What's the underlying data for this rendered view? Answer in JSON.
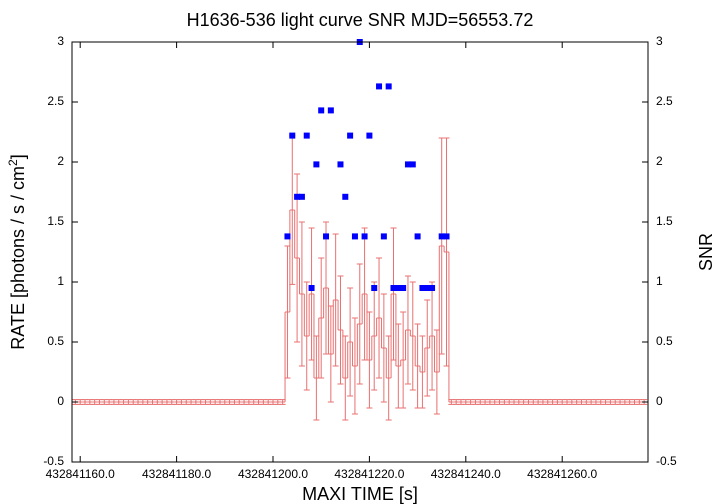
{
  "chart_data": {
    "type": "light-curve",
    "title": "H1636-536 light curve  SNR MJD=56553.72",
    "xlabel": "MAXI TIME [s]",
    "ylabel": "RATE [photons / s / cm",
    "ylabel_sup": "2",
    "ylabel_end": "]",
    "y2label": "SNR",
    "xlim": [
      432841158.3,
      432841277.8
    ],
    "ylim": [
      -0.5,
      3
    ],
    "y2lim": [
      -0.5,
      3
    ],
    "xticks": [
      {
        "value": 432841160,
        "label": "432841160.0"
      },
      {
        "value": 432841180,
        "label": "432841180.0"
      },
      {
        "value": 432841200,
        "label": "432841200.0"
      },
      {
        "value": 432841220,
        "label": "432841220.0"
      },
      {
        "value": 432841240,
        "label": "432841240.0"
      },
      {
        "value": 432841260,
        "label": "432841260.0"
      }
    ],
    "yticks": [
      -0.5,
      0,
      0.5,
      1,
      1.5,
      2,
      2.5,
      3
    ],
    "y2ticks": [
      -0.5,
      0,
      0.5,
      1,
      1.5,
      2,
      2.5,
      3
    ],
    "series": [
      {
        "style": "histeps",
        "color": "#e87070",
        "x": [
          432841159,
          432841160,
          432841161,
          432841162,
          432841163,
          432841164,
          432841165,
          432841166,
          432841167,
          432841168,
          432841169,
          432841170,
          432841171,
          432841172,
          432841173,
          432841174,
          432841175,
          432841176,
          432841177,
          432841178,
          432841179,
          432841180,
          432841181,
          432841182,
          432841183,
          432841184,
          432841185,
          432841186,
          432841187,
          432841188,
          432841189,
          432841190,
          432841191,
          432841192,
          432841193,
          432841194,
          432841195,
          432841196,
          432841197,
          432841198,
          432841199,
          432841200,
          432841201,
          432841202,
          432841203,
          432841204,
          432841205,
          432841206,
          432841207,
          432841208,
          432841209,
          432841210,
          432841211,
          432841212,
          432841213,
          432841214,
          432841215,
          432841216,
          432841217,
          432841218,
          432841219,
          432841220,
          432841221,
          432841222,
          432841223,
          432841224,
          432841225,
          432841226,
          432841227,
          432841228,
          432841229,
          432841230,
          432841231,
          432841232,
          432841233,
          432841234,
          432841235,
          432841236,
          432841237,
          432841238,
          432841239,
          432841240,
          432841241,
          432841242,
          432841243,
          432841244,
          432841245,
          432841246,
          432841247,
          432841248,
          432841249,
          432841250,
          432841251,
          432841252,
          432841253,
          432841254,
          432841255,
          432841256,
          432841257,
          432841258,
          432841259,
          432841260,
          432841261,
          432841262,
          432841263,
          432841264,
          432841265,
          432841266,
          432841267,
          432841268,
          432841269,
          432841270,
          432841271,
          432841272,
          432841273,
          432841274,
          432841275,
          432841276,
          432841277
        ],
        "values": [
          0,
          0,
          0,
          0,
          0,
          0,
          0,
          0,
          0,
          0,
          0,
          0,
          0,
          0,
          0,
          0,
          0,
          0,
          0,
          0,
          0,
          0,
          0,
          0,
          0,
          0,
          0,
          0,
          0,
          0,
          0,
          0,
          0,
          0,
          0,
          0,
          0,
          0,
          0,
          0,
          0,
          0,
          0,
          0,
          0.75,
          1.6,
          1.2,
          0.9,
          0.55,
          0.9,
          0.2,
          0.7,
          0.95,
          0.4,
          0.85,
          0.6,
          0.2,
          0.5,
          0.3,
          0.65,
          0.9,
          0.35,
          0.55,
          0.7,
          0.45,
          0.2,
          0.9,
          0.3,
          0.35,
          0.6,
          0.55,
          0.3,
          0.25,
          0.45,
          0.55,
          0.25,
          1.3,
          1.25,
          0,
          0,
          0,
          0,
          0,
          0,
          0,
          0,
          0,
          0,
          0,
          0,
          0,
          0,
          0,
          0,
          0,
          0,
          0,
          0,
          0,
          0,
          0,
          0,
          0,
          0,
          0,
          0,
          0,
          0,
          0,
          0,
          0,
          0,
          0,
          0,
          0,
          0,
          0,
          0,
          0
        ],
        "errors": [
          0.02,
          0.02,
          0.02,
          0.02,
          0.02,
          0.02,
          0.02,
          0.02,
          0.02,
          0.02,
          0.02,
          0.02,
          0.02,
          0.02,
          0.02,
          0.02,
          0.02,
          0.02,
          0.02,
          0.02,
          0.02,
          0.02,
          0.02,
          0.02,
          0.02,
          0.02,
          0.02,
          0.02,
          0.02,
          0.02,
          0.02,
          0.02,
          0.02,
          0.02,
          0.02,
          0.02,
          0.02,
          0.02,
          0.02,
          0.02,
          0.02,
          0.02,
          0.02,
          0.02,
          0.55,
          0.62,
          0.7,
          0.6,
          0.45,
          0.55,
          0.35,
          0.5,
          0.55,
          0.4,
          0.55,
          0.45,
          0.35,
          0.45,
          0.4,
          0.5,
          0.55,
          0.4,
          0.45,
          0.5,
          0.45,
          0.35,
          0.55,
          0.35,
          0.4,
          0.45,
          0.45,
          0.35,
          0.3,
          0.4,
          0.45,
          0.35,
          0.9,
          0.95,
          0.02,
          0.02,
          0.02,
          0.02,
          0.02,
          0.02,
          0.02,
          0.02,
          0.02,
          0.02,
          0.02,
          0.02,
          0.02,
          0.02,
          0.02,
          0.02,
          0.02,
          0.02,
          0.02,
          0.02,
          0.02,
          0.02,
          0.02,
          0.02,
          0.02,
          0.02,
          0.02,
          0.02,
          0.02,
          0.02,
          0.02,
          0.02,
          0.02,
          0.02,
          0.02,
          0.02,
          0.02,
          0.02,
          0.02,
          0.02,
          0.02
        ]
      },
      {
        "style": "points",
        "marker": "square",
        "color": "#0000ff",
        "axis": "y2",
        "x": [
          432841203,
          432841204,
          432841205,
          432841206,
          432841207,
          432841208,
          432841209,
          432841210,
          432841211,
          432841212,
          432841214,
          432841215,
          432841216,
          432841217,
          432841218,
          432841219,
          432841220,
          432841221,
          432841222,
          432841223,
          432841224,
          432841225,
          432841226,
          432841227,
          432841228,
          432841229,
          432841230,
          432841231,
          432841232,
          432841233,
          432841235,
          432841236
        ],
        "values": [
          1.38,
          2.22,
          1.71,
          1.71,
          2.22,
          0.95,
          1.98,
          2.43,
          1.38,
          2.43,
          1.98,
          1.71,
          2.22,
          1.38,
          3.0,
          1.38,
          2.22,
          0.95,
          2.63,
          1.38,
          2.63,
          0.95,
          0.95,
          0.95,
          1.98,
          1.98,
          1.38,
          0.95,
          0.95,
          0.95,
          1.38,
          1.38
        ]
      }
    ]
  }
}
